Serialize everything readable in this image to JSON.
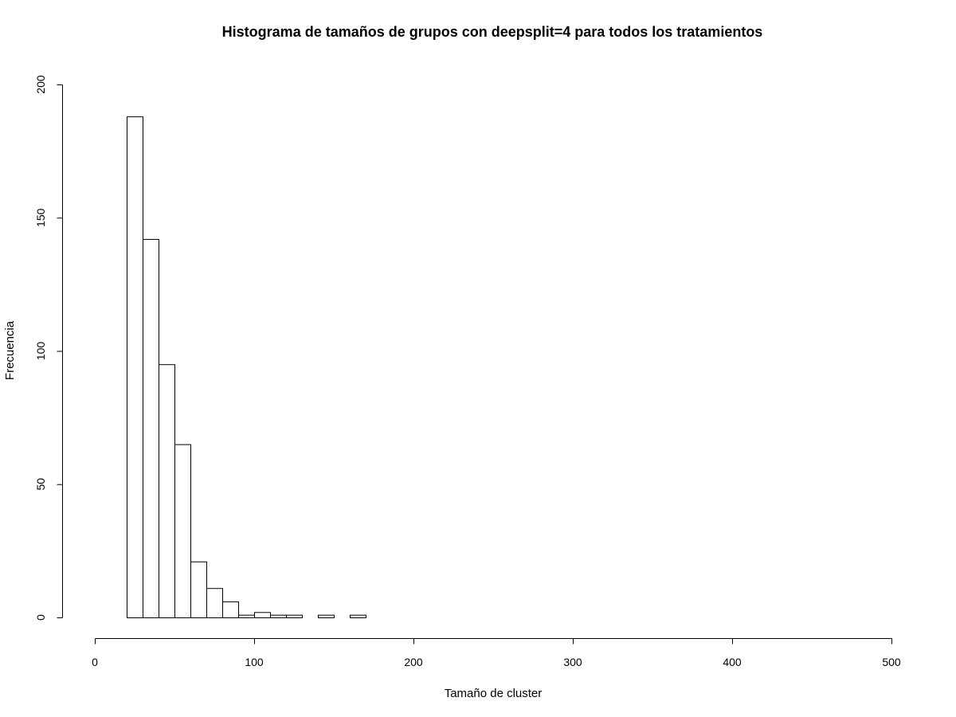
{
  "chart_data": {
    "type": "bar",
    "title": "Histograma de tamaños de grupos con deepsplit=4 para todos los tratamientos",
    "xlabel": "Tamaño de cluster",
    "ylabel": "Frecuencia",
    "xlim": [
      0,
      500
    ],
    "ylim": [
      0,
      200
    ],
    "x_ticks": [
      0,
      100,
      200,
      300,
      400,
      500
    ],
    "y_ticks": [
      0,
      50,
      100,
      150,
      200
    ],
    "bin_width": 10,
    "bins": [
      {
        "start": 20,
        "end": 30,
        "count": 188
      },
      {
        "start": 30,
        "end": 40,
        "count": 142
      },
      {
        "start": 40,
        "end": 50,
        "count": 95
      },
      {
        "start": 50,
        "end": 60,
        "count": 65
      },
      {
        "start": 60,
        "end": 70,
        "count": 21
      },
      {
        "start": 70,
        "end": 80,
        "count": 11
      },
      {
        "start": 80,
        "end": 90,
        "count": 6
      },
      {
        "start": 90,
        "end": 100,
        "count": 1
      },
      {
        "start": 100,
        "end": 110,
        "count": 2
      },
      {
        "start": 110,
        "end": 120,
        "count": 1
      },
      {
        "start": 120,
        "end": 130,
        "count": 1
      },
      {
        "start": 130,
        "end": 140,
        "count": 0
      },
      {
        "start": 140,
        "end": 150,
        "count": 1
      },
      {
        "start": 150,
        "end": 160,
        "count": 0
      },
      {
        "start": 160,
        "end": 170,
        "count": 1
      }
    ],
    "grid": false,
    "legend": "none"
  }
}
